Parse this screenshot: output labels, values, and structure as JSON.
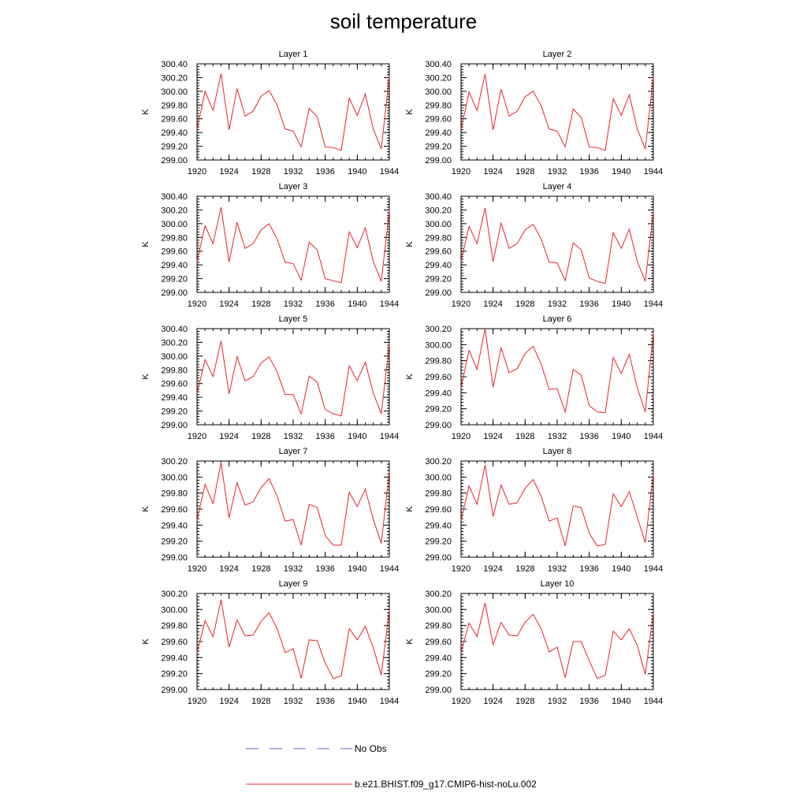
{
  "title": "soil temperature",
  "legend": [
    {
      "label": "No Obs",
      "color": "#6a6ad8",
      "dash": true
    },
    {
      "label": "b.e21.BHIST.f09_g17.CMIP6-hist-noLu.002",
      "color": "#e8242a",
      "dash": false
    }
  ],
  "chart_data": [
    {
      "type": "line",
      "title": "Layer 1",
      "ylabel": "K",
      "xlim": [
        1920,
        1944
      ],
      "ylim": [
        299.0,
        300.4
      ],
      "xticks": [
        1920,
        1924,
        1928,
        1932,
        1936,
        1940,
        1944
      ],
      "yticks": [
        "299.00",
        "299.20",
        "299.40",
        "299.60",
        "299.80",
        "300.00",
        "300.20",
        "300.40"
      ],
      "x": [
        1920,
        1921,
        1922,
        1923,
        1924,
        1925,
        1926,
        1927,
        1928,
        1929,
        1930,
        1931,
        1932,
        1933,
        1934,
        1935,
        1936,
        1937,
        1938,
        1939,
        1940,
        1941,
        1942,
        1943,
        1944
      ],
      "series": [
        {
          "name": "b.e21.BHIST.f09_g17.CMIP6-hist-noLu.002",
          "values": [
            299.44,
            300.0,
            299.72,
            300.26,
            299.44,
            300.04,
            299.64,
            299.71,
            299.93,
            300.01,
            299.8,
            299.45,
            299.42,
            299.19,
            299.75,
            299.63,
            299.19,
            299.18,
            299.14,
            299.9,
            299.65,
            299.96,
            299.45,
            299.16,
            300.22
          ]
        }
      ]
    },
    {
      "type": "line",
      "title": "Layer 2",
      "ylabel": "K",
      "xlim": [
        1920,
        1944
      ],
      "ylim": [
        299.0,
        300.4
      ],
      "xticks": [
        1920,
        1924,
        1928,
        1932,
        1936,
        1940,
        1944
      ],
      "yticks": [
        "299.00",
        "299.20",
        "299.40",
        "299.60",
        "299.80",
        "300.00",
        "300.20",
        "300.40"
      ],
      "x": [
        1920,
        1921,
        1922,
        1923,
        1924,
        1925,
        1926,
        1927,
        1928,
        1929,
        1930,
        1931,
        1932,
        1933,
        1934,
        1935,
        1936,
        1937,
        1938,
        1939,
        1940,
        1941,
        1942,
        1943,
        1944
      ],
      "series": [
        {
          "name": "b.e21.BHIST.f09_g17.CMIP6-hist-noLu.002",
          "values": [
            299.44,
            299.99,
            299.72,
            300.25,
            299.44,
            300.03,
            299.64,
            299.71,
            299.92,
            300.0,
            299.79,
            299.45,
            299.42,
            299.19,
            299.74,
            299.62,
            299.19,
            299.18,
            299.14,
            299.89,
            299.65,
            299.95,
            299.45,
            299.16,
            300.21
          ]
        }
      ]
    },
    {
      "type": "line",
      "title": "Layer 3",
      "ylabel": "K",
      "xlim": [
        1920,
        1944
      ],
      "ylim": [
        299.0,
        300.4
      ],
      "xticks": [
        1920,
        1924,
        1928,
        1932,
        1936,
        1940,
        1944
      ],
      "yticks": [
        "299.00",
        "299.20",
        "299.40",
        "299.60",
        "299.80",
        "300.00",
        "300.20",
        "300.40"
      ],
      "x": [
        1920,
        1921,
        1922,
        1923,
        1924,
        1925,
        1926,
        1927,
        1928,
        1929,
        1930,
        1931,
        1932,
        1933,
        1934,
        1935,
        1936,
        1937,
        1938,
        1939,
        1940,
        1941,
        1942,
        1943,
        1944
      ],
      "series": [
        {
          "name": "b.e21.BHIST.f09_g17.CMIP6-hist-noLu.002",
          "values": [
            299.45,
            299.97,
            299.71,
            300.24,
            299.44,
            300.02,
            299.64,
            299.71,
            299.91,
            300.0,
            299.78,
            299.44,
            299.42,
            299.18,
            299.73,
            299.62,
            299.2,
            299.17,
            299.14,
            299.88,
            299.65,
            299.94,
            299.45,
            299.16,
            300.2
          ]
        }
      ]
    },
    {
      "type": "line",
      "title": "Layer 4",
      "ylabel": "K",
      "xlim": [
        1920,
        1944
      ],
      "ylim": [
        299.0,
        300.4
      ],
      "xticks": [
        1920,
        1924,
        1928,
        1932,
        1936,
        1940,
        1944
      ],
      "yticks": [
        "299.00",
        "299.20",
        "299.40",
        "299.60",
        "299.80",
        "300.00",
        "300.20",
        "300.40"
      ],
      "x": [
        1920,
        1921,
        1922,
        1923,
        1924,
        1925,
        1926,
        1927,
        1928,
        1929,
        1930,
        1931,
        1932,
        1933,
        1934,
        1935,
        1936,
        1937,
        1938,
        1939,
        1940,
        1941,
        1942,
        1943,
        1944
      ],
      "series": [
        {
          "name": "b.e21.BHIST.f09_g17.CMIP6-hist-noLu.002",
          "values": [
            299.45,
            299.96,
            299.71,
            300.23,
            299.45,
            300.01,
            299.64,
            299.71,
            299.91,
            299.99,
            299.78,
            299.44,
            299.43,
            299.17,
            299.72,
            299.62,
            299.21,
            299.16,
            299.13,
            299.87,
            299.64,
            299.92,
            299.45,
            299.16,
            300.18
          ]
        }
      ]
    },
    {
      "type": "line",
      "title": "Layer 5",
      "ylabel": "K",
      "xlim": [
        1920,
        1944
      ],
      "ylim": [
        299.0,
        300.4
      ],
      "xticks": [
        1920,
        1924,
        1928,
        1932,
        1936,
        1940,
        1944
      ],
      "yticks": [
        "299.00",
        "299.20",
        "299.40",
        "299.60",
        "299.80",
        "300.00",
        "300.20",
        "300.40"
      ],
      "x": [
        1920,
        1921,
        1922,
        1923,
        1924,
        1925,
        1926,
        1927,
        1928,
        1929,
        1930,
        1931,
        1932,
        1933,
        1934,
        1935,
        1936,
        1937,
        1938,
        1939,
        1940,
        1941,
        1942,
        1943,
        1944
      ],
      "series": [
        {
          "name": "b.e21.BHIST.f09_g17.CMIP6-hist-noLu.002",
          "values": [
            299.45,
            299.95,
            299.7,
            300.22,
            299.45,
            299.99,
            299.64,
            299.7,
            299.9,
            299.99,
            299.77,
            299.44,
            299.44,
            299.16,
            299.71,
            299.62,
            299.22,
            299.16,
            299.13,
            299.86,
            299.64,
            299.91,
            299.46,
            299.16,
            300.18
          ]
        }
      ]
    },
    {
      "type": "line",
      "title": "Layer 6",
      "ylabel": "K",
      "xlim": [
        1920,
        1944
      ],
      "ylim": [
        299.0,
        300.2
      ],
      "xticks": [
        1920,
        1924,
        1928,
        1932,
        1936,
        1940,
        1944
      ],
      "yticks": [
        "299.00",
        "299.20",
        "299.40",
        "299.60",
        "299.80",
        "300.00",
        "300.20"
      ],
      "x": [
        1920,
        1921,
        1922,
        1923,
        1924,
        1925,
        1926,
        1927,
        1928,
        1929,
        1930,
        1931,
        1932,
        1933,
        1934,
        1935,
        1936,
        1937,
        1938,
        1939,
        1940,
        1941,
        1942,
        1943,
        1944
      ],
      "series": [
        {
          "name": "b.e21.BHIST.f09_g17.CMIP6-hist-noLu.002",
          "values": [
            299.46,
            299.93,
            299.69,
            300.2,
            299.47,
            299.96,
            299.65,
            299.7,
            299.89,
            299.98,
            299.76,
            299.44,
            299.45,
            299.16,
            299.69,
            299.62,
            299.24,
            299.16,
            299.15,
            299.84,
            299.64,
            299.88,
            299.46,
            299.16,
            300.15
          ]
        }
      ]
    },
    {
      "type": "line",
      "title": "Layer 7",
      "ylabel": "K",
      "xlim": [
        1920,
        1944
      ],
      "ylim": [
        299.0,
        300.2
      ],
      "xticks": [
        1920,
        1924,
        1928,
        1932,
        1936,
        1940,
        1944
      ],
      "yticks": [
        "299.00",
        "299.20",
        "299.40",
        "299.60",
        "299.80",
        "300.00",
        "300.20"
      ],
      "x": [
        1920,
        1921,
        1922,
        1923,
        1924,
        1925,
        1926,
        1927,
        1928,
        1929,
        1930,
        1931,
        1932,
        1933,
        1934,
        1935,
        1936,
        1937,
        1938,
        1939,
        1940,
        1941,
        1942,
        1943,
        1944
      ],
      "series": [
        {
          "name": "b.e21.BHIST.f09_g17.CMIP6-hist-noLu.002",
          "values": [
            299.46,
            299.91,
            299.67,
            300.18,
            299.49,
            299.93,
            299.65,
            299.69,
            299.87,
            299.98,
            299.76,
            299.45,
            299.47,
            299.15,
            299.66,
            299.62,
            299.27,
            299.15,
            299.15,
            299.81,
            299.63,
            299.85,
            299.47,
            299.17,
            300.07
          ]
        }
      ]
    },
    {
      "type": "line",
      "title": "Layer 8",
      "ylabel": "K",
      "xlim": [
        1920,
        1944
      ],
      "ylim": [
        299.0,
        300.2
      ],
      "xticks": [
        1920,
        1924,
        1928,
        1932,
        1936,
        1940,
        1944
      ],
      "yticks": [
        "299.00",
        "299.20",
        "299.40",
        "299.60",
        "299.80",
        "300.00",
        "300.20"
      ],
      "x": [
        1920,
        1921,
        1922,
        1923,
        1924,
        1925,
        1926,
        1927,
        1928,
        1929,
        1930,
        1931,
        1932,
        1933,
        1934,
        1935,
        1936,
        1937,
        1938,
        1939,
        1940,
        1941,
        1942,
        1943,
        1944
      ],
      "series": [
        {
          "name": "b.e21.BHIST.f09_g17.CMIP6-hist-noLu.002",
          "values": [
            299.46,
            299.89,
            299.66,
            300.15,
            299.51,
            299.9,
            299.66,
            299.68,
            299.86,
            299.97,
            299.76,
            299.45,
            299.49,
            299.14,
            299.64,
            299.62,
            299.3,
            299.14,
            299.16,
            299.79,
            299.63,
            299.82,
            299.5,
            299.18,
            300.04
          ]
        }
      ]
    },
    {
      "type": "line",
      "title": "Layer 9",
      "ylabel": "K",
      "xlim": [
        1920,
        1944
      ],
      "ylim": [
        299.0,
        300.2
      ],
      "xticks": [
        1920,
        1924,
        1928,
        1932,
        1936,
        1940,
        1944
      ],
      "yticks": [
        "299.00",
        "299.20",
        "299.40",
        "299.60",
        "299.80",
        "300.00",
        "300.20"
      ],
      "x": [
        1920,
        1921,
        1922,
        1923,
        1924,
        1925,
        1926,
        1927,
        1928,
        1929,
        1930,
        1931,
        1932,
        1933,
        1934,
        1935,
        1936,
        1937,
        1938,
        1939,
        1940,
        1941,
        1942,
        1943,
        1944
      ],
      "series": [
        {
          "name": "b.e21.BHIST.f09_g17.CMIP6-hist-noLu.002",
          "values": [
            299.46,
            299.86,
            299.66,
            300.12,
            299.53,
            299.87,
            299.67,
            299.68,
            299.85,
            299.96,
            299.76,
            299.46,
            299.51,
            299.14,
            299.62,
            299.61,
            299.33,
            299.14,
            299.17,
            299.76,
            299.62,
            299.79,
            299.52,
            299.18,
            300.0
          ]
        }
      ]
    },
    {
      "type": "line",
      "title": "Layer 10",
      "ylabel": "K",
      "xlim": [
        1920,
        1944
      ],
      "ylim": [
        299.0,
        300.2
      ],
      "xticks": [
        1920,
        1924,
        1928,
        1932,
        1936,
        1940,
        1944
      ],
      "yticks": [
        "299.00",
        "299.20",
        "299.40",
        "299.60",
        "299.80",
        "300.00",
        "300.20"
      ],
      "x": [
        1920,
        1921,
        1922,
        1923,
        1924,
        1925,
        1926,
        1927,
        1928,
        1929,
        1930,
        1931,
        1932,
        1933,
        1934,
        1935,
        1936,
        1937,
        1938,
        1939,
        1940,
        1941,
        1942,
        1943,
        1944
      ],
      "series": [
        {
          "name": "b.e21.BHIST.f09_g17.CMIP6-hist-noLu.002",
          "values": [
            299.46,
            299.83,
            299.66,
            300.08,
            299.56,
            299.84,
            299.68,
            299.67,
            299.84,
            299.94,
            299.76,
            299.47,
            299.53,
            299.15,
            299.6,
            299.6,
            299.36,
            299.14,
            299.18,
            299.73,
            299.62,
            299.76,
            299.55,
            299.19,
            299.96
          ]
        }
      ]
    }
  ]
}
